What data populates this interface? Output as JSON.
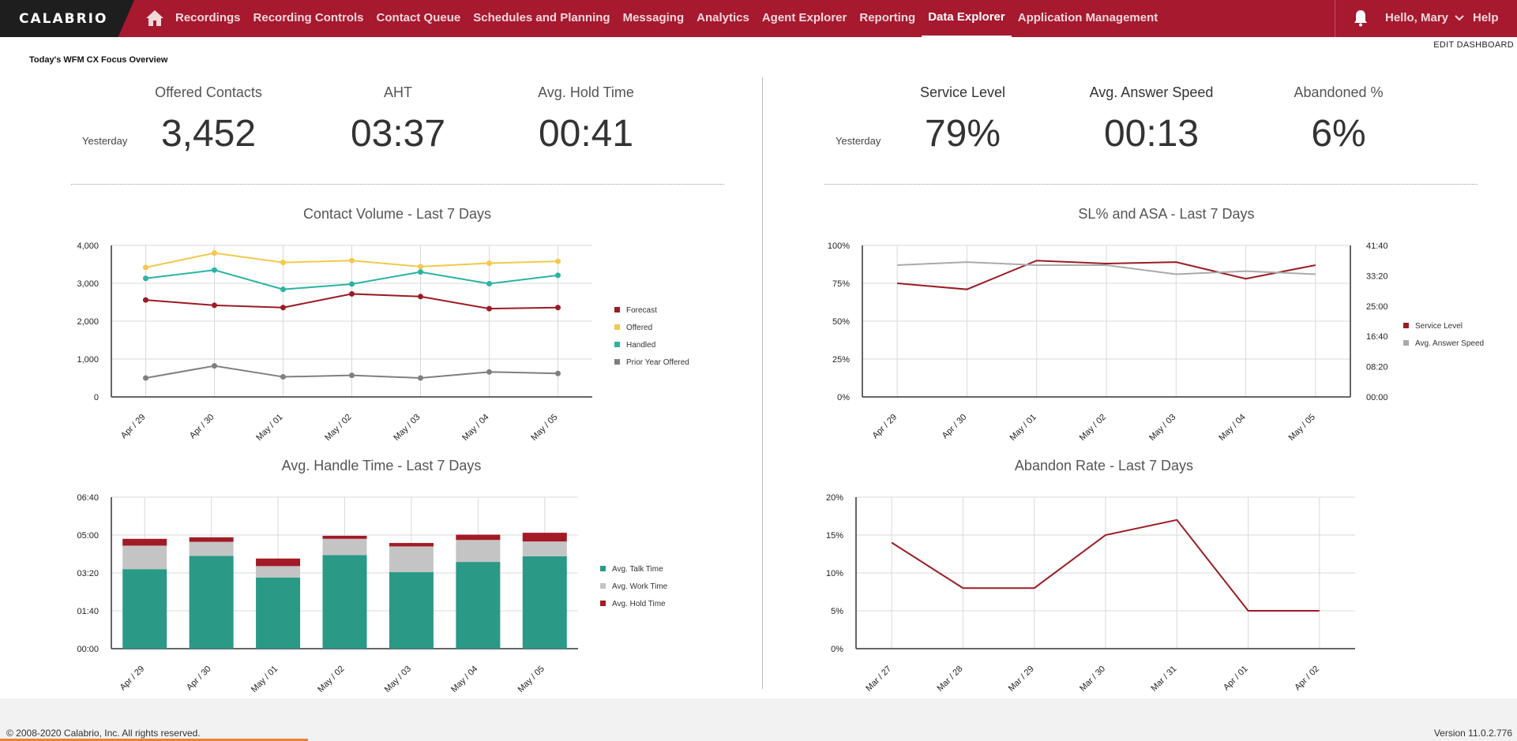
{
  "app": {
    "logo": "CALABRIO"
  },
  "nav": {
    "items": [
      "Recordings",
      "Recording Controls",
      "Contact Queue",
      "Schedules and Planning",
      "Messaging",
      "Analytics",
      "Agent Explorer",
      "Reporting",
      "Data Explorer",
      "Application Management"
    ],
    "active": "Data Explorer",
    "user": "Hello, Mary",
    "help": "Help"
  },
  "dashboard": {
    "edit_label": "EDIT DASHBOARD",
    "title": "Today's WFM CX Focus Overview"
  },
  "kpis_left": {
    "period": "Yesterday",
    "items": [
      {
        "label": "Offered Contacts",
        "value": "3,452"
      },
      {
        "label": "AHT",
        "value": "03:37"
      },
      {
        "label": "Avg. Hold Time",
        "value": "00:41"
      }
    ]
  },
  "kpis_right": {
    "period": "Yesterday",
    "items": [
      {
        "label": "Service Level",
        "value": "79%"
      },
      {
        "label": "Avg. Answer Speed",
        "value": "00:13"
      },
      {
        "label": "Abandoned %",
        "value": "6%"
      }
    ]
  },
  "colors": {
    "forecast": "#9b1c24",
    "offered": "#f2c94c",
    "handled": "#2bb3a3",
    "prior_year": "#7f7f7f",
    "talk": "#2a9986",
    "work": "#c4c4c4",
    "hold": "#a31a26",
    "asa": "#aaaaaa"
  },
  "chart_data": [
    {
      "id": "contact-volume",
      "type": "line",
      "title": "Contact Volume - Last 7 Days",
      "categories": [
        "Apr / 29",
        "Apr / 30",
        "May / 01",
        "May / 02",
        "May / 03",
        "May / 04",
        "May / 05"
      ],
      "ylim": [
        0,
        4000
      ],
      "yticks": [
        "0",
        "1,000",
        "2,000",
        "3,000",
        "4,000"
      ],
      "legend_position": "right",
      "series": [
        {
          "name": "Forecast",
          "values": [
            2560,
            2420,
            2360,
            2720,
            2650,
            2330,
            2360
          ]
        },
        {
          "name": "Offered",
          "values": [
            3420,
            3800,
            3550,
            3600,
            3440,
            3530,
            3580
          ]
        },
        {
          "name": "Handled",
          "values": [
            3130,
            3350,
            2840,
            2980,
            3300,
            2990,
            3210
          ]
        },
        {
          "name": "Prior Year Offered",
          "values": [
            500,
            820,
            530,
            570,
            500,
            660,
            620
          ]
        }
      ]
    },
    {
      "id": "sl-asa",
      "type": "line",
      "title": "SL% and ASA - Last 7 Days",
      "categories": [
        "Apr / 29",
        "Apr / 30",
        "May / 01",
        "May / 02",
        "May / 03",
        "May / 04",
        "May / 05"
      ],
      "ylim": [
        0,
        100
      ],
      "yticks": [
        "0%",
        "25%",
        "50%",
        "75%",
        "100%"
      ],
      "y2ticks": [
        "00:00",
        "08:20",
        "16:40",
        "25:00",
        "33:20",
        "41:40"
      ],
      "legend_position": "right",
      "series": [
        {
          "name": "Service Level",
          "values": [
            75,
            71,
            90,
            88,
            89,
            78,
            87
          ]
        },
        {
          "name": "Avg. Answer Speed",
          "values": [
            87,
            89,
            87,
            87,
            81,
            83,
            81
          ]
        }
      ]
    },
    {
      "id": "aht",
      "type": "bar",
      "title": "Avg. Handle Time - Last 7 Days",
      "categories": [
        "Apr / 29",
        "Apr / 30",
        "May / 01",
        "May / 02",
        "May / 03",
        "May / 04",
        "May / 05"
      ],
      "ylim": [
        0,
        400
      ],
      "yticks": [
        "00:00",
        "01:40",
        "03:20",
        "05:00",
        "06:40"
      ],
      "legend_position": "right",
      "series": [
        {
          "name": "Avg. Talk Time",
          "values": [
            210,
            245,
            188,
            247,
            202,
            229,
            244
          ]
        },
        {
          "name": "Avg. Work Time",
          "values": [
            62,
            37,
            30,
            43,
            68,
            58,
            39
          ]
        },
        {
          "name": "Avg. Hold Time",
          "values": [
            18,
            12,
            20,
            8,
            9,
            14,
            23
          ]
        }
      ]
    },
    {
      "id": "abandon",
      "type": "line",
      "title": "Abandon Rate - Last 7 Days",
      "categories": [
        "Mar / 27",
        "Mar / 28",
        "Mar / 29",
        "Mar / 30",
        "Mar / 31",
        "Apr / 01",
        "Apr / 02"
      ],
      "ylim": [
        0,
        20
      ],
      "yticks": [
        "0%",
        "5%",
        "10%",
        "15%",
        "20%"
      ],
      "series": [
        {
          "values": [
            14,
            8,
            8,
            15,
            17,
            5,
            5
          ]
        }
      ]
    }
  ],
  "footer": {
    "copyright": "© 2008-2020 Calabrio, Inc. All rights reserved.",
    "version": "Version 11.0.2.776"
  }
}
